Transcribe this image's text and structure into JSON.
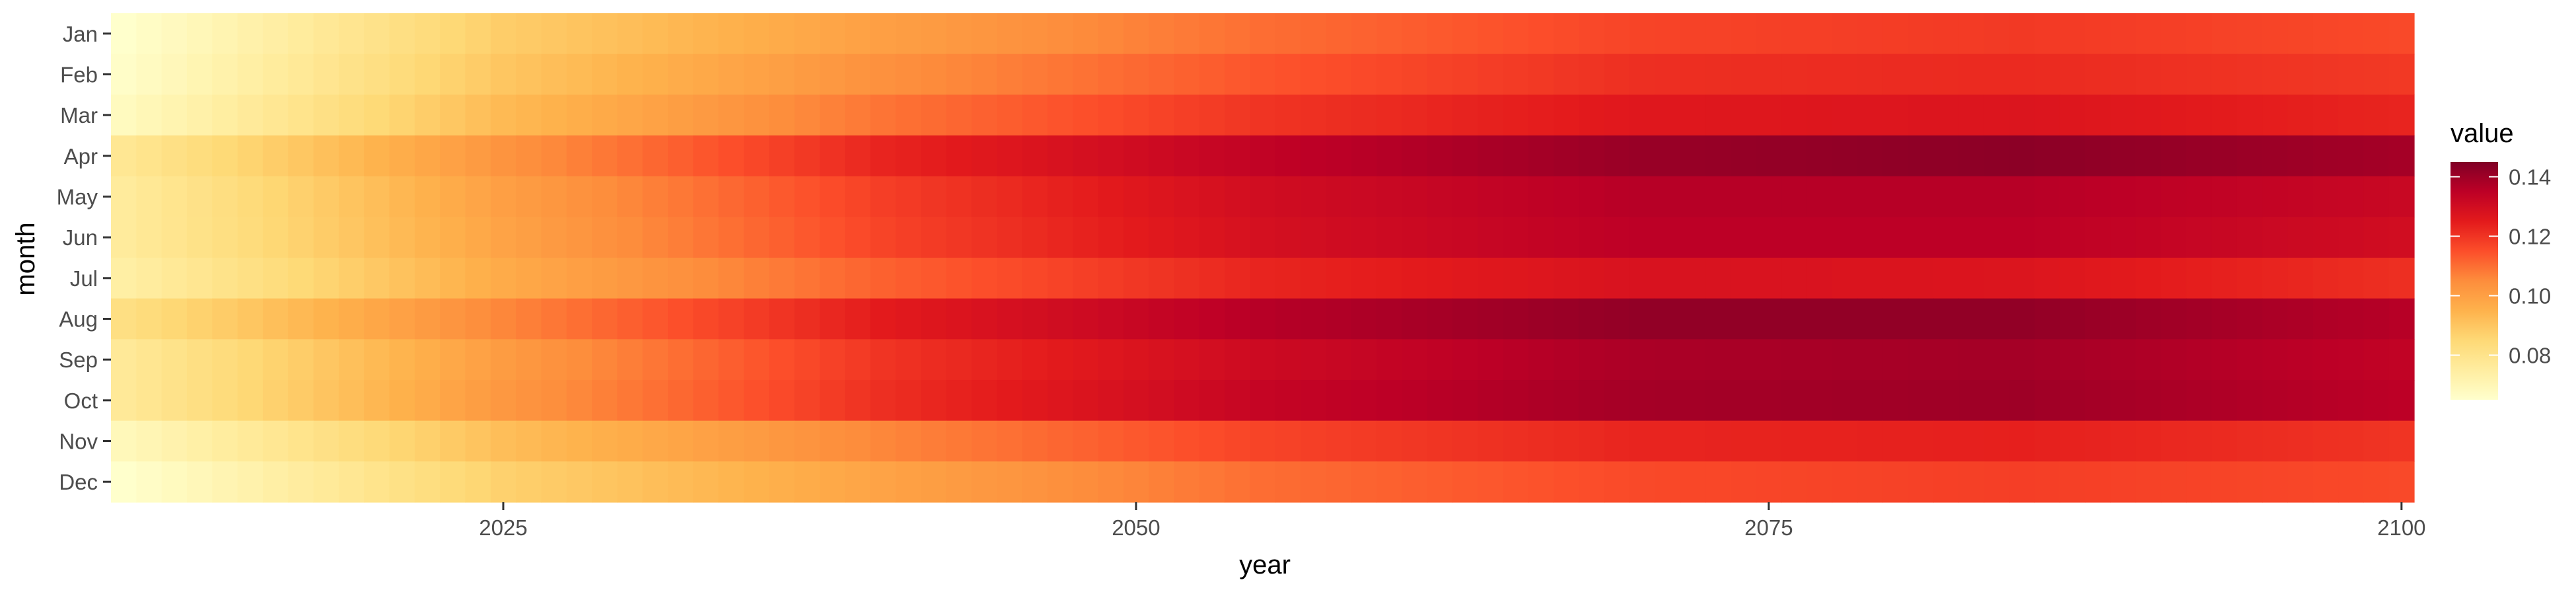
{
  "chart_data": {
    "type": "heatmap",
    "xlabel": "year",
    "ylabel": "month",
    "x_start": 2010,
    "x_end": 2100,
    "x_ticks": [
      2025,
      2050,
      2075,
      2100
    ],
    "x_tick_labels": [
      "2025",
      "2050",
      "2075",
      "2100"
    ],
    "months": [
      "Jan",
      "Feb",
      "Mar",
      "Apr",
      "May",
      "Jun",
      "Jul",
      "Aug",
      "Sep",
      "Oct",
      "Nov",
      "Dec"
    ],
    "month_profiles": [
      {
        "month": "Jan",
        "years": [
          2010,
          2025,
          2040,
          2055,
          2070,
          2085,
          2100
        ],
        "values": [
          0.065,
          0.088,
          0.1,
          0.11,
          0.117,
          0.119,
          0.116
        ]
      },
      {
        "month": "Feb",
        "years": [
          2010,
          2025,
          2040,
          2055,
          2070,
          2085,
          2100
        ],
        "values": [
          0.066,
          0.09,
          0.104,
          0.114,
          0.121,
          0.122,
          0.119
        ]
      },
      {
        "month": "Mar",
        "years": [
          2010,
          2025,
          2040,
          2055,
          2070,
          2085,
          2100
        ],
        "values": [
          0.068,
          0.093,
          0.109,
          0.12,
          0.126,
          0.127,
          0.123
        ]
      },
      {
        "month": "Apr",
        "years": [
          2010,
          2025,
          2040,
          2055,
          2070,
          2085,
          2100
        ],
        "values": [
          0.078,
          0.103,
          0.123,
          0.134,
          0.141,
          0.143,
          0.139
        ]
      },
      {
        "month": "May",
        "years": [
          2010,
          2025,
          2040,
          2055,
          2070,
          2085,
          2100
        ],
        "values": [
          0.076,
          0.1,
          0.118,
          0.13,
          0.136,
          0.136,
          0.132
        ]
      },
      {
        "month": "Jun",
        "years": [
          2010,
          2025,
          2040,
          2055,
          2070,
          2085,
          2100
        ],
        "values": [
          0.076,
          0.099,
          0.117,
          0.129,
          0.135,
          0.135,
          0.13
        ]
      },
      {
        "month": "Jul",
        "years": [
          2010,
          2025,
          2040,
          2055,
          2070,
          2085,
          2100
        ],
        "values": [
          0.074,
          0.097,
          0.112,
          0.123,
          0.128,
          0.127,
          0.121
        ]
      },
      {
        "month": "Aug",
        "years": [
          2010,
          2025,
          2040,
          2055,
          2070,
          2085,
          2100
        ],
        "values": [
          0.082,
          0.106,
          0.125,
          0.136,
          0.142,
          0.142,
          0.136
        ]
      },
      {
        "month": "Sep",
        "years": [
          2010,
          2025,
          2040,
          2055,
          2070,
          2085,
          2100
        ],
        "values": [
          0.077,
          0.101,
          0.12,
          0.131,
          0.138,
          0.139,
          0.134
        ]
      },
      {
        "month": "Oct",
        "years": [
          2010,
          2025,
          2040,
          2055,
          2070,
          2085,
          2100
        ],
        "values": [
          0.077,
          0.102,
          0.121,
          0.133,
          0.139,
          0.14,
          0.135
        ]
      },
      {
        "month": "Nov",
        "years": [
          2010,
          2025,
          2040,
          2055,
          2070,
          2085,
          2100
        ],
        "values": [
          0.069,
          0.092,
          0.106,
          0.117,
          0.123,
          0.124,
          0.12
        ]
      },
      {
        "month": "Dec",
        "years": [
          2010,
          2025,
          2040,
          2055,
          2070,
          2085,
          2100
        ],
        "values": [
          0.065,
          0.087,
          0.099,
          0.11,
          0.116,
          0.118,
          0.116
        ]
      }
    ],
    "legend": {
      "title": "value",
      "placement": "right",
      "range": [
        0.065,
        0.145
      ],
      "breaks": [
        0.08,
        0.1,
        0.12,
        0.14
      ],
      "break_labels": [
        "0.08",
        "0.10",
        "0.12",
        "0.14"
      ]
    },
    "colors": {
      "panel_background": "#ffffff",
      "axis_text": "#4d4d4d",
      "axis_title": "#000000",
      "tick": "#333333",
      "gradient": [
        "#ffffcc",
        "#ffeda0",
        "#fed976",
        "#feb24c",
        "#fd8d3c",
        "#fc4e2a",
        "#e31a1c",
        "#bd0026",
        "#800026"
      ]
    },
    "grid": false
  }
}
